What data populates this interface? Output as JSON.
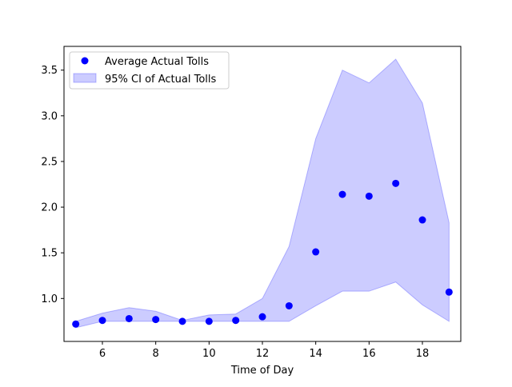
{
  "chart_data": {
    "type": "scatter",
    "title": "",
    "xlabel": "Time of Day",
    "ylabel": "",
    "xlim": [
      4.56,
      19.44
    ],
    "ylim": [
      0.53,
      3.76
    ],
    "xticks": [
      6,
      8,
      10,
      12,
      14,
      16,
      18
    ],
    "yticks": [
      1.0,
      1.5,
      2.0,
      2.5,
      3.0,
      3.5
    ],
    "xtick_labels": [
      "6",
      "8",
      "10",
      "12",
      "14",
      "16",
      "18"
    ],
    "ytick_labels": [
      "1.0",
      "1.5",
      "2.0",
      "2.5",
      "3.0",
      "3.5"
    ],
    "grid": false,
    "legend_position": "top-left",
    "series": [
      {
        "name": "Average Actual Tolls",
        "kind": "scatter",
        "color": "#0000ff",
        "x": [
          5,
          6,
          7,
          8,
          9,
          10,
          11,
          12,
          13,
          14,
          15,
          16,
          17,
          18,
          19
        ],
        "y": [
          0.72,
          0.76,
          0.78,
          0.77,
          0.75,
          0.75,
          0.76,
          0.8,
          0.92,
          1.51,
          2.14,
          2.12,
          2.26,
          1.86,
          1.07
        ]
      },
      {
        "name": "95% CI of Actual Tolls",
        "kind": "band",
        "color": "#0000ff",
        "fill": "#ccccff",
        "x": [
          5,
          6,
          7,
          8,
          9,
          10,
          11,
          12,
          13,
          14,
          15,
          16,
          17,
          18,
          19
        ],
        "lower": [
          0.68,
          0.75,
          0.75,
          0.75,
          0.75,
          0.75,
          0.75,
          0.75,
          0.75,
          0.92,
          1.08,
          1.08,
          1.18,
          0.93,
          0.75
        ],
        "upper": [
          0.75,
          0.84,
          0.9,
          0.86,
          0.76,
          0.82,
          0.83,
          1.0,
          1.57,
          2.75,
          3.5,
          3.36,
          3.62,
          3.14,
          1.83
        ]
      }
    ]
  }
}
